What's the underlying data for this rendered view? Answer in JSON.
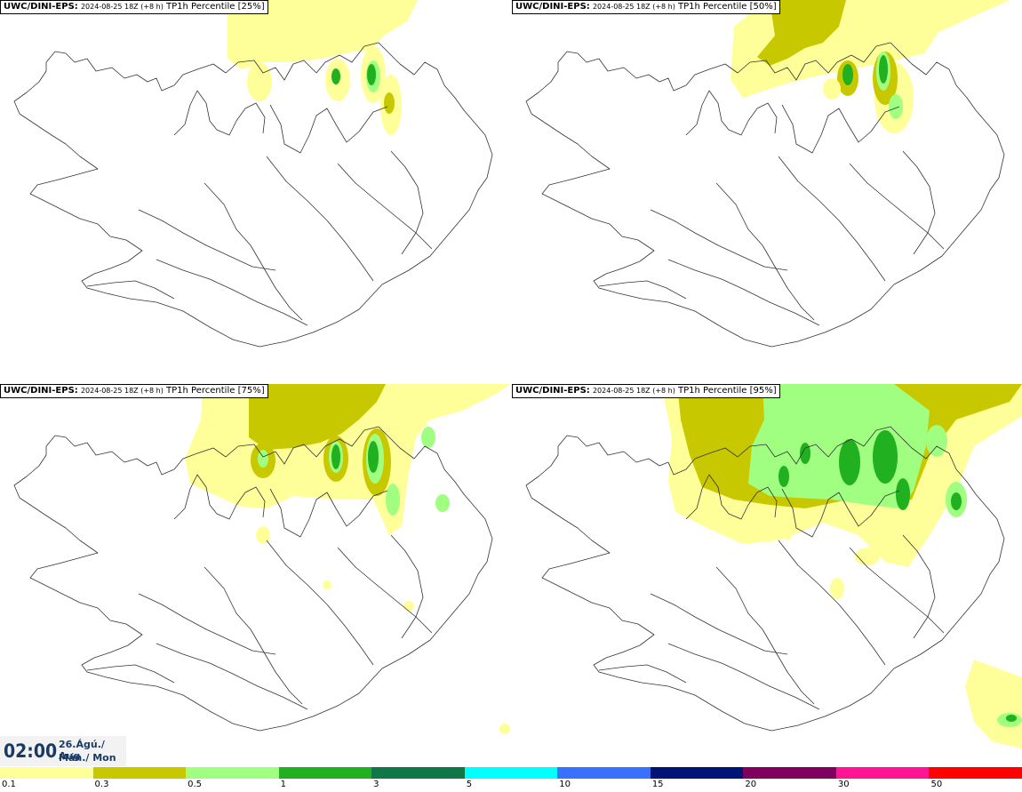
{
  "panels": [
    {
      "model": "UWC/DINI-EPS",
      "run": "2024-08-25 18Z (+8 h)",
      "param": "TP1h Percentile [25%]"
    },
    {
      "model": "UWC/DINI-EPS",
      "run": "2024-08-25 18Z (+8 h)",
      "param": "TP1h Percentile [50%]"
    },
    {
      "model": "UWC/DINI-EPS",
      "run": "2024-08-25 18Z (+8 h)",
      "param": "TP1h Percentile [75%]"
    },
    {
      "model": "UWC/DINI-EPS",
      "run": "2024-08-25 18Z (+8 h)",
      "param": "TP1h Percentile [95%]"
    }
  ],
  "clock": {
    "time": "02:00",
    "date": "26.Ágú./ Aug",
    "day": "Mán./ Mon"
  },
  "legend": {
    "ticks": [
      "0.1",
      "0.3",
      "0.5",
      "1",
      "3",
      "5",
      "10",
      "15",
      "20",
      "30",
      "50"
    ],
    "colors": [
      "#ffff99",
      "#c8c800",
      "#a0ff80",
      "#20b020",
      "#107848",
      "#00ffff",
      "#3870ff",
      "#001478",
      "#800060",
      "#ff1493",
      "#ff0000"
    ]
  }
}
